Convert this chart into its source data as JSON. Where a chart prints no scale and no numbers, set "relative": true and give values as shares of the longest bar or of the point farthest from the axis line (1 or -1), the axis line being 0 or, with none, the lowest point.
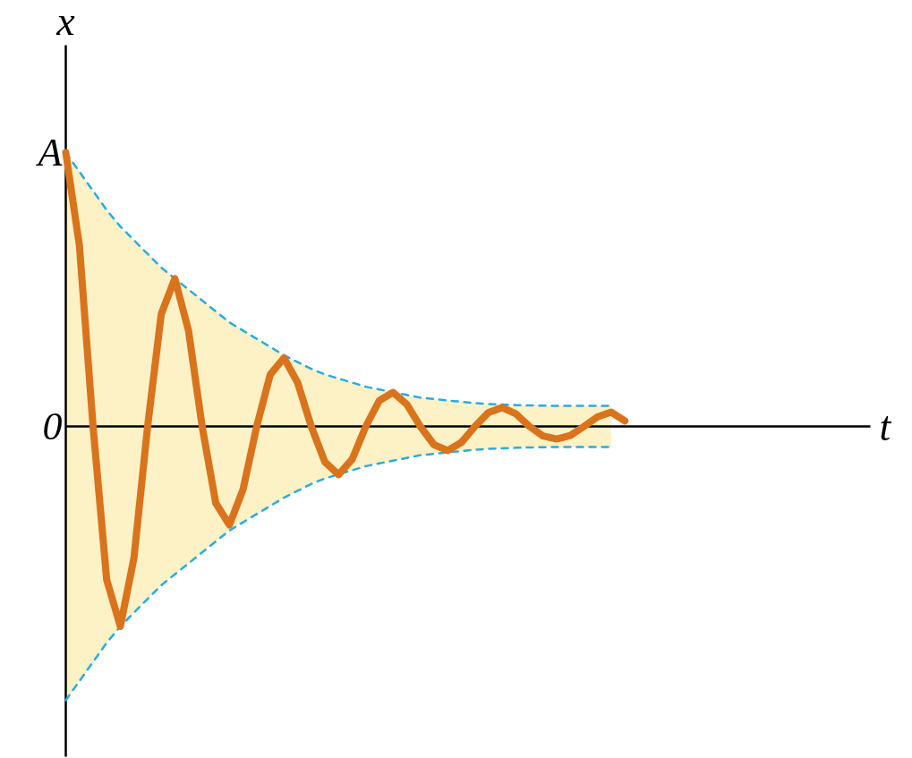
{
  "chart_data": {
    "type": "line",
    "xlabel": "t",
    "ylabel": "x",
    "relative": true,
    "categories": [
      null,
      null,
      null,
      null,
      null,
      null,
      null,
      null,
      null,
      null,
      null,
      null,
      null,
      null,
      null,
      null,
      null,
      null,
      null,
      null,
      null,
      null,
      null,
      null,
      null,
      null,
      null,
      null,
      null,
      null,
      null,
      null,
      null,
      null,
      null,
      null,
      null,
      null,
      null,
      null,
      null,
      null,
      null,
      null,
      null,
      null,
      null,
      null,
      null,
      null,
      null,
      null,
      null,
      null,
      null,
      null,
      null,
      null,
      null,
      null
    ],
    "annotations": [
      "A",
      "0"
    ],
    "series": [
      {
        "color": "#d9731c",
        "values": [
          1.0,
          0.66,
          0,
          -0.56,
          -0.73,
          -0.48,
          0,
          0.41,
          0.54,
          0.35,
          0,
          -0.28,
          -0.36,
          -0.23,
          0,
          0.19,
          0.25,
          0.16,
          0,
          -0.13,
          -0.176,
          -0.12,
          0,
          0.095,
          0.124,
          0.081,
          0,
          -0.067,
          -0.088,
          -0.059,
          0,
          0.051,
          0.069,
          0.046,
          0,
          -0.035,
          -0.046,
          -0.033,
          0,
          0.035,
          0.052,
          0.02,
          null,
          null,
          null,
          null,
          null,
          null,
          null,
          null,
          null,
          null,
          null,
          null,
          null,
          null,
          null,
          null,
          null,
          null
        ],
        "lower": [
          -1.0,
          -0.93,
          -0.86,
          -0.79,
          -0.73,
          -0.68,
          -0.63,
          -0.58,
          -0.54,
          -0.5,
          -0.46,
          -0.42,
          -0.38,
          -0.35,
          -0.32,
          -0.29,
          -0.26,
          -0.235,
          -0.21,
          -0.19,
          -0.175,
          -0.16,
          -0.145,
          -0.135,
          -0.125,
          -0.115,
          -0.105,
          -0.1,
          -0.095,
          -0.09,
          -0.085,
          -0.082,
          -0.08,
          -0.078,
          -0.077,
          -0.076,
          -0.075,
          -0.075,
          -0.075,
          -0.075,
          -0.075,
          null,
          null,
          null,
          null,
          null,
          null,
          null,
          null,
          null,
          null,
          null,
          null,
          null,
          null,
          null,
          null,
          null,
          null,
          null
        ],
        "upper": [
          1.0,
          0.93,
          0.86,
          0.79,
          0.73,
          0.68,
          0.63,
          0.58,
          0.54,
          0.5,
          0.46,
          0.42,
          0.38,
          0.35,
          0.32,
          0.29,
          0.26,
          0.235,
          0.21,
          0.19,
          0.175,
          0.16,
          0.145,
          0.135,
          0.125,
          0.115,
          0.105,
          0.1,
          0.095,
          0.09,
          0.085,
          0.082,
          0.08,
          0.078,
          0.077,
          0.076,
          0.075,
          0.075,
          0.075,
          0.075,
          0.075,
          null,
          null,
          null,
          null,
          null,
          null,
          null,
          null,
          null,
          null,
          null,
          null,
          null,
          null,
          null,
          null,
          null,
          null,
          null
        ]
      },
      {
        "color": "#29abe2",
        "line_style": "dashed",
        "values": [
          1.0,
          0.93,
          0.86,
          0.79,
          0.73,
          0.68,
          0.63,
          0.58,
          0.54,
          0.5,
          0.46,
          0.42,
          0.38,
          0.35,
          0.32,
          0.29,
          0.26,
          0.235,
          0.21,
          0.19,
          0.175,
          0.16,
          0.145,
          0.135,
          0.125,
          0.115,
          0.105,
          0.1,
          0.095,
          0.09,
          0.085,
          0.082,
          0.08,
          0.078,
          0.077,
          0.076,
          0.075,
          0.075,
          0.075,
          0.075,
          0.075,
          null,
          null,
          null,
          null,
          null,
          null,
          null,
          null,
          null,
          null,
          null,
          null,
          null,
          null,
          null,
          null,
          null,
          null,
          null
        ]
      },
      {
        "color": "#29abe2",
        "line_style": "dashed",
        "values": [
          -1.0,
          -0.93,
          -0.86,
          -0.79,
          -0.73,
          -0.68,
          -0.63,
          -0.58,
          -0.54,
          -0.5,
          -0.46,
          -0.42,
          -0.38,
          -0.35,
          -0.32,
          -0.29,
          -0.26,
          -0.235,
          -0.21,
          -0.19,
          -0.175,
          -0.16,
          -0.145,
          -0.135,
          -0.125,
          -0.115,
          -0.105,
          -0.1,
          -0.095,
          -0.09,
          -0.085,
          -0.082,
          -0.08,
          -0.078,
          -0.077,
          -0.076,
          -0.075,
          -0.075,
          -0.075,
          -0.075,
          -0.075,
          null,
          null,
          null,
          null,
          null,
          null,
          null,
          null,
          null,
          null,
          null,
          null,
          null,
          null,
          null,
          null,
          null,
          null,
          null
        ]
      }
    ]
  }
}
